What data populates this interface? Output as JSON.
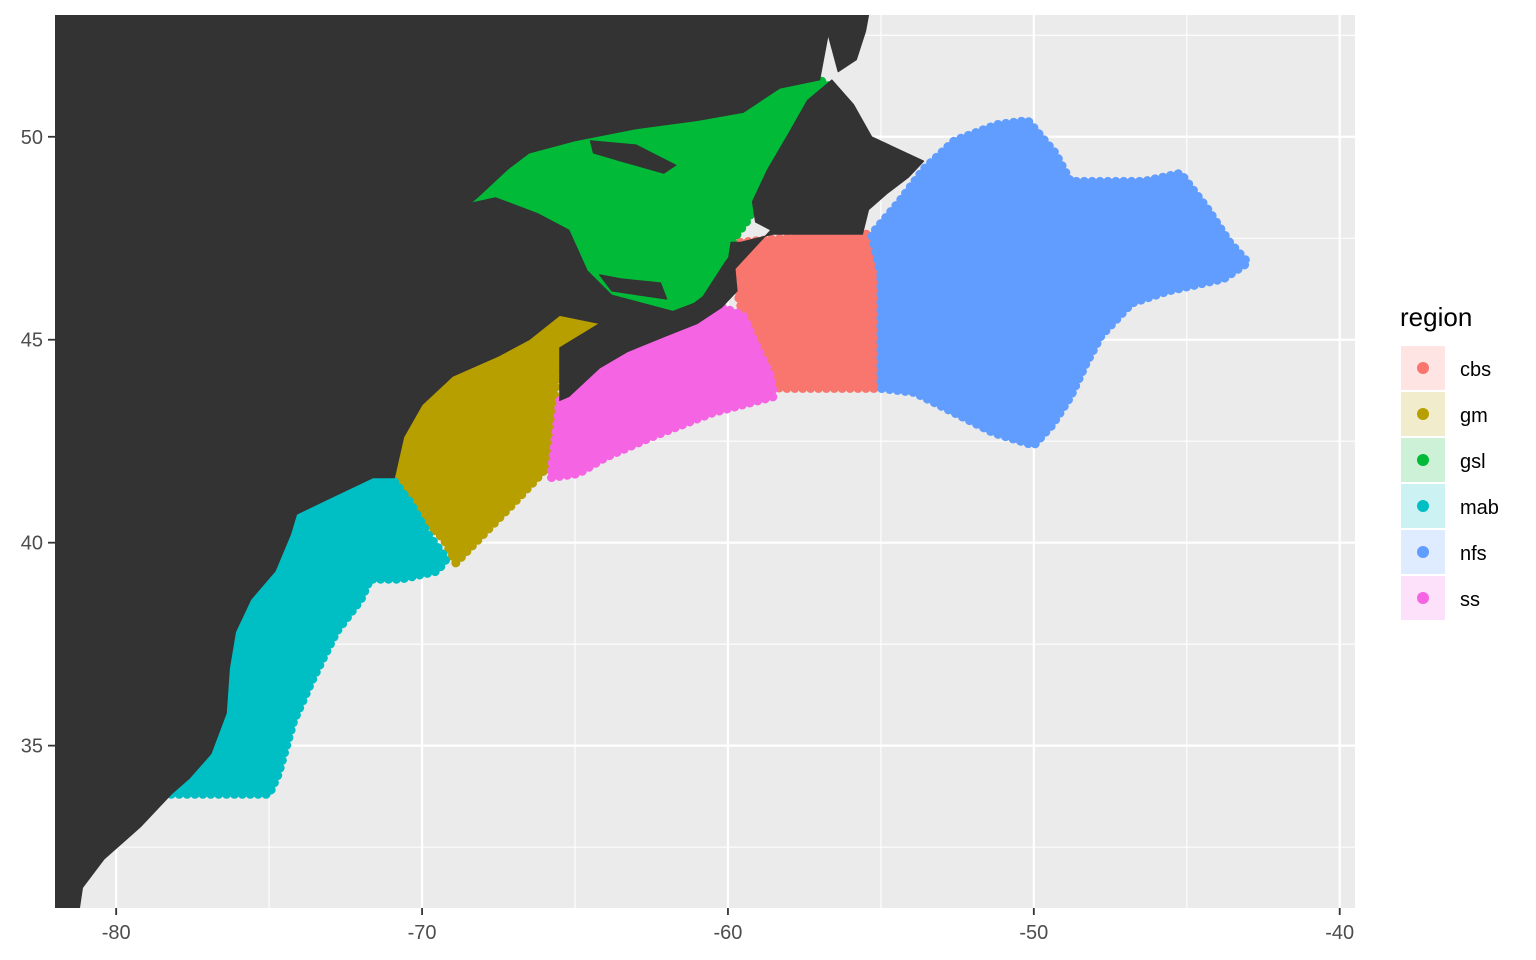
{
  "chart_data": {
    "type": "map",
    "title": "",
    "xlabel": "",
    "ylabel": "",
    "xlim": [
      -82,
      -39.5
    ],
    "ylim": [
      31,
      53
    ],
    "x_ticks": [
      -80,
      -70,
      -60,
      -50,
      -40
    ],
    "x_tick_labels": [
      "-80",
      "-70",
      "-60",
      "-50",
      "-40"
    ],
    "y_ticks": [
      35,
      40,
      45,
      50
    ],
    "y_tick_labels": [
      "35",
      "40",
      "45",
      "50"
    ],
    "grid": true,
    "legend_position": "right",
    "legend_title": "region",
    "colors": {
      "panel": "#EBEBEB",
      "grid_major": "#FFFFFF",
      "land": "#333333",
      "tick": "#4d4d4d"
    },
    "regions": [
      {
        "name": "cbs",
        "color": "#F8766D",
        "polygon": [
          [
            -59.6,
            47.4
          ],
          [
            -56.8,
            47.6
          ],
          [
            -55.4,
            47.6
          ],
          [
            -55.0,
            46.8
          ],
          [
            -55.0,
            43.8
          ],
          [
            -58.3,
            43.8
          ],
          [
            -58.8,
            44.0
          ],
          [
            -59.3,
            45.0
          ],
          [
            -59.7,
            46.2
          ],
          [
            -59.8,
            47.0
          ]
        ]
      },
      {
        "name": "gm",
        "color": "#B79F00",
        "polygon": [
          [
            -70.9,
            41.6
          ],
          [
            -70.6,
            42.6
          ],
          [
            -70.0,
            43.4
          ],
          [
            -69.0,
            44.1
          ],
          [
            -67.5,
            44.6
          ],
          [
            -66.5,
            45.0
          ],
          [
            -65.5,
            45.6
          ],
          [
            -64.2,
            45.4
          ],
          [
            -65.5,
            44.8
          ],
          [
            -65.7,
            43.4
          ],
          [
            -65.8,
            42.0
          ],
          [
            -66.1,
            41.7
          ],
          [
            -67.1,
            40.9
          ],
          [
            -68.0,
            40.2
          ],
          [
            -68.9,
            39.5
          ],
          [
            -69.3,
            40.1
          ],
          [
            -69.9,
            40.5
          ]
        ]
      },
      {
        "name": "gsl",
        "color": "#00BA38",
        "polygon": [
          [
            -70.8,
            47.0
          ],
          [
            -69.5,
            47.7
          ],
          [
            -68.2,
            48.5
          ],
          [
            -67.2,
            49.2
          ],
          [
            -66.5,
            49.6
          ],
          [
            -65.0,
            49.9
          ],
          [
            -63.0,
            50.2
          ],
          [
            -61.0,
            50.4
          ],
          [
            -59.5,
            50.6
          ],
          [
            -58.3,
            51.2
          ],
          [
            -57.0,
            51.4
          ],
          [
            -56.6,
            51.2
          ],
          [
            -57.0,
            50.2
          ],
          [
            -58.0,
            49.4
          ],
          [
            -58.8,
            48.7
          ],
          [
            -59.4,
            47.9
          ],
          [
            -59.9,
            47.4
          ],
          [
            -60.0,
            46.9
          ],
          [
            -60.4,
            46.3
          ],
          [
            -61.1,
            45.9
          ],
          [
            -61.8,
            45.7
          ],
          [
            -62.8,
            45.9
          ],
          [
            -63.8,
            46.1
          ],
          [
            -64.6,
            46.7
          ],
          [
            -64.9,
            47.2
          ],
          [
            -65.2,
            47.7
          ],
          [
            -66.2,
            48.1
          ],
          [
            -67.6,
            48.5
          ],
          [
            -68.8,
            48.3
          ],
          [
            -69.8,
            47.6
          ]
        ]
      },
      {
        "name": "mab",
        "color": "#00BFC4",
        "polygon": [
          [
            -78.2,
            33.8
          ],
          [
            -75.0,
            33.8
          ],
          [
            -74.7,
            34.3
          ],
          [
            -74.2,
            35.6
          ],
          [
            -73.6,
            36.6
          ],
          [
            -72.8,
            37.8
          ],
          [
            -72.0,
            38.6
          ],
          [
            -71.7,
            39.1
          ],
          [
            -70.7,
            39.1
          ],
          [
            -69.5,
            39.3
          ],
          [
            -69.2,
            39.6
          ],
          [
            -69.8,
            40.2
          ],
          [
            -70.4,
            41.0
          ],
          [
            -70.9,
            41.5
          ],
          [
            -71.6,
            41.6
          ],
          [
            -73.0,
            41.1
          ],
          [
            -74.1,
            40.7
          ],
          [
            -74.3,
            40.2
          ],
          [
            -74.8,
            39.3
          ],
          [
            -75.6,
            38.6
          ],
          [
            -76.1,
            37.8
          ],
          [
            -76.3,
            36.9
          ],
          [
            -76.4,
            35.8
          ],
          [
            -76.9,
            34.8
          ],
          [
            -77.6,
            34.2
          ]
        ]
      },
      {
        "name": "nfs",
        "color": "#619CFF",
        "polygon": [
          [
            -55.0,
            46.6
          ],
          [
            -55.3,
            47.6
          ],
          [
            -54.4,
            48.4
          ],
          [
            -53.6,
            49.2
          ],
          [
            -52.6,
            49.9
          ],
          [
            -51.2,
            50.3
          ],
          [
            -50.2,
            50.4
          ],
          [
            -49.3,
            49.6
          ],
          [
            -48.8,
            48.9
          ],
          [
            -46.4,
            48.9
          ],
          [
            -45.2,
            49.1
          ],
          [
            -44.3,
            48.2
          ],
          [
            -43.6,
            47.4
          ],
          [
            -43.0,
            46.9
          ],
          [
            -43.8,
            46.5
          ],
          [
            -45.6,
            46.2
          ],
          [
            -46.8,
            45.9
          ],
          [
            -47.8,
            45.1
          ],
          [
            -48.3,
            44.4
          ],
          [
            -48.8,
            43.6
          ],
          [
            -49.4,
            42.9
          ],
          [
            -50.0,
            42.4
          ],
          [
            -51.3,
            42.7
          ],
          [
            -52.6,
            43.2
          ],
          [
            -53.9,
            43.7
          ],
          [
            -55.0,
            43.8
          ]
        ]
      },
      {
        "name": "ss",
        "color": "#F564E3",
        "polygon": [
          [
            -65.5,
            43.5
          ],
          [
            -65.2,
            43.6
          ],
          [
            -64.2,
            44.3
          ],
          [
            -63.3,
            44.7
          ],
          [
            -62.0,
            45.1
          ],
          [
            -61.0,
            45.4
          ],
          [
            -60.2,
            45.8
          ],
          [
            -59.5,
            45.6
          ],
          [
            -59.1,
            44.9
          ],
          [
            -58.6,
            44.1
          ],
          [
            -58.5,
            43.6
          ],
          [
            -60.5,
            43.2
          ],
          [
            -62.5,
            42.6
          ],
          [
            -64.0,
            42.1
          ],
          [
            -64.9,
            41.7
          ],
          [
            -65.8,
            41.6
          ]
        ]
      }
    ],
    "land": [
      [
        [
          -82,
          53
        ],
        [
          -70.8,
          53
        ],
        [
          -70.8,
          47.0
        ],
        [
          -69.5,
          47.7
        ],
        [
          -68.2,
          48.5
        ],
        [
          -67.2,
          49.2
        ],
        [
          -66.5,
          49.6
        ],
        [
          -65.0,
          49.9
        ],
        [
          -63.0,
          50.2
        ],
        [
          -61.0,
          50.4
        ],
        [
          -59.5,
          50.6
        ],
        [
          -58.3,
          51.2
        ],
        [
          -57.0,
          51.4
        ],
        [
          -56.6,
          53
        ],
        [
          -82,
          53
        ]
      ],
      [
        [
          -82,
          53
        ],
        [
          -70.8,
          53
        ],
        [
          -70.8,
          47.0
        ],
        [
          -69.8,
          47.6
        ],
        [
          -68.8,
          48.3
        ],
        [
          -67.6,
          48.5
        ],
        [
          -66.2,
          48.1
        ],
        [
          -65.2,
          47.7
        ],
        [
          -64.9,
          47.2
        ],
        [
          -64.6,
          46.7
        ],
        [
          -63.8,
          46.1
        ],
        [
          -62.8,
          45.9
        ],
        [
          -61.8,
          45.7
        ],
        [
          -61.1,
          45.9
        ],
        [
          -60.4,
          46.3
        ],
        [
          -60.0,
          46.9
        ],
        [
          -59.9,
          47.4
        ],
        [
          -59.6,
          47.4
        ],
        [
          -59.8,
          47.0
        ],
        [
          -59.7,
          46.2
        ],
        [
          -60.2,
          45.8
        ],
        [
          -61.0,
          45.4
        ],
        [
          -62.0,
          45.1
        ],
        [
          -63.3,
          44.7
        ],
        [
          -64.2,
          44.3
        ],
        [
          -65.2,
          43.6
        ],
        [
          -65.5,
          43.5
        ],
        [
          -65.5,
          44.8
        ],
        [
          -64.2,
          45.4
        ],
        [
          -65.5,
          45.6
        ],
        [
          -66.5,
          45.0
        ],
        [
          -67.5,
          44.6
        ],
        [
          -69.0,
          44.1
        ],
        [
          -70.0,
          43.4
        ],
        [
          -70.6,
          42.6
        ],
        [
          -70.9,
          41.6
        ],
        [
          -71.6,
          41.6
        ],
        [
          -73.0,
          41.1
        ],
        [
          -74.1,
          40.7
        ],
        [
          -74.3,
          40.2
        ],
        [
          -74.8,
          39.3
        ],
        [
          -75.6,
          38.6
        ],
        [
          -76.1,
          37.8
        ],
        [
          -76.3,
          36.9
        ],
        [
          -76.4,
          35.8
        ],
        [
          -76.9,
          34.8
        ],
        [
          -77.6,
          34.2
        ],
        [
          -78.2,
          33.8
        ],
        [
          -79.2,
          33.0
        ],
        [
          -80.4,
          32.2
        ],
        [
          -81.1,
          31.5
        ],
        [
          -81.2,
          31
        ],
        [
          -82,
          31
        ]
      ],
      [
        [
          -61.3,
          45.5
        ],
        [
          -60.1,
          46.9
        ],
        [
          -59.6,
          47.4
        ],
        [
          -58.5,
          47.6
        ],
        [
          -56.8,
          47.6
        ],
        [
          -55.6,
          47.6
        ],
        [
          -55.4,
          48.2
        ],
        [
          -54.8,
          48.6
        ],
        [
          -54.1,
          49.0
        ],
        [
          -53.6,
          49.4
        ],
        [
          -55.3,
          50.0
        ],
        [
          -55.9,
          50.8
        ],
        [
          -56.6,
          51.4
        ],
        [
          -57.4,
          50.9
        ],
        [
          -58.0,
          50.1
        ],
        [
          -58.7,
          49.2
        ],
        [
          -59.2,
          48.4
        ],
        [
          -59.1,
          47.9
        ],
        [
          -58.6,
          47.7
        ]
      ],
      [
        [
          -56.9,
          53
        ],
        [
          -56.4,
          51.6
        ],
        [
          -55.8,
          51.9
        ],
        [
          -55.5,
          52.6
        ],
        [
          -55.4,
          53
        ]
      ],
      [
        [
          -64.2,
          46.6
        ],
        [
          -63.5,
          46.5
        ],
        [
          -62.2,
          46.4
        ],
        [
          -62.0,
          46.0
        ],
        [
          -62.9,
          46.1
        ],
        [
          -63.8,
          46.2
        ]
      ],
      [
        [
          -64.5,
          49.9
        ],
        [
          -63.0,
          49.8
        ],
        [
          -61.7,
          49.3
        ],
        [
          -62.1,
          49.1
        ],
        [
          -63.5,
          49.4
        ],
        [
          -64.4,
          49.6
        ]
      ]
    ]
  },
  "legend": {
    "title": "region",
    "items": [
      {
        "label": "cbs",
        "color": "#F8766D"
      },
      {
        "label": "gm",
        "color": "#B79F00"
      },
      {
        "label": "gsl",
        "color": "#00BA38"
      },
      {
        "label": "mab",
        "color": "#00BFC4"
      },
      {
        "label": "nfs",
        "color": "#619CFF"
      },
      {
        "label": "ss",
        "color": "#F564E3"
      }
    ]
  }
}
